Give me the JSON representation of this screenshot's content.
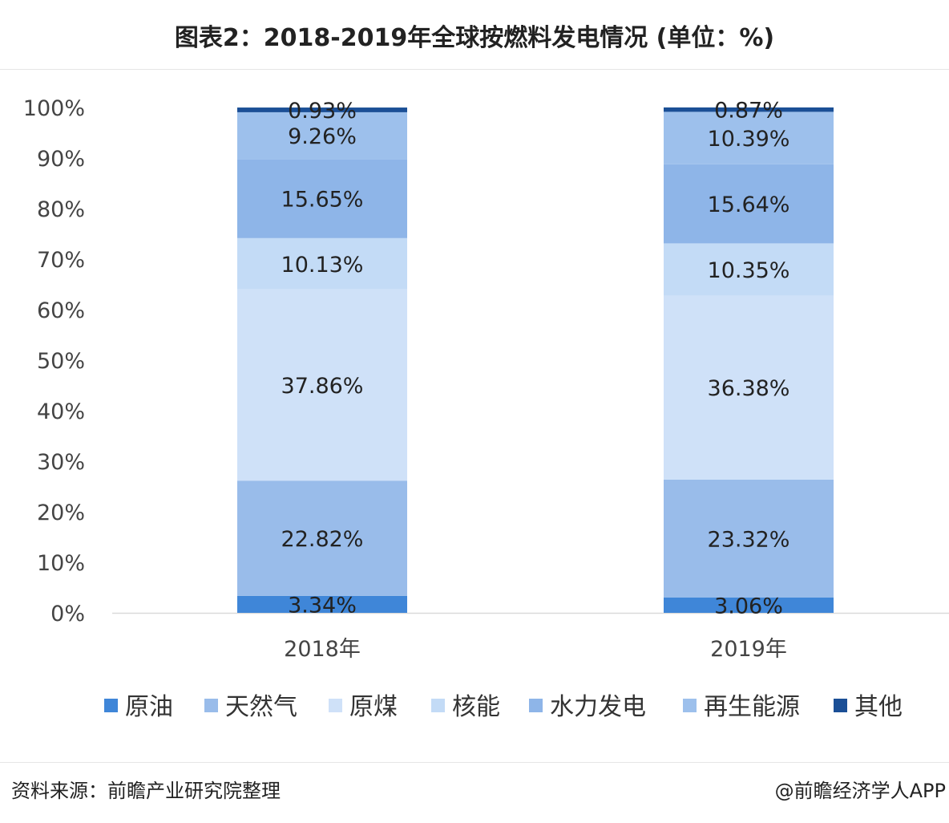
{
  "title": "图表2：2018-2019年全球按燃料发电情况 (单位：%)",
  "footer": {
    "source": "资料来源：前瞻产业研究院整理",
    "credit": "@前瞻经济学人APP"
  },
  "chart_data": {
    "type": "bar",
    "stacked": true,
    "categories": [
      "2018年",
      "2019年"
    ],
    "series": [
      {
        "name": "原油",
        "values": [
          3.34,
          3.06
        ],
        "color": "#3f86d8"
      },
      {
        "name": "天然气",
        "values": [
          22.82,
          23.32
        ],
        "color": "#99bcea"
      },
      {
        "name": "原煤",
        "values": [
          37.86,
          36.38
        ],
        "color": "#cfe1f8"
      },
      {
        "name": "核能",
        "values": [
          10.13,
          10.35
        ],
        "color": "#c3dbf6"
      },
      {
        "name": "水力发电",
        "values": [
          15.65,
          15.64
        ],
        "color": "#8eb5e8"
      },
      {
        "name": "再生能源",
        "values": [
          9.26,
          10.39
        ],
        "color": "#9dc0ec"
      },
      {
        "name": "其他",
        "values": [
          0.93,
          0.87
        ],
        "color": "#1b4f96"
      }
    ],
    "data_labels": [
      [
        "3.34%",
        "22.82%",
        "37.86%",
        "10.13%",
        "15.65%",
        "9.26%",
        "0.93%"
      ],
      [
        "3.06%",
        "23.32%",
        "36.38%",
        "10.35%",
        "15.64%",
        "10.39%",
        "0.87%"
      ]
    ],
    "ylim": [
      0,
      100
    ],
    "yticks": [
      "0%",
      "10%",
      "20%",
      "30%",
      "40%",
      "50%",
      "60%",
      "70%",
      "80%",
      "90%",
      "100%"
    ],
    "xlabel": "",
    "ylabel": "",
    "grid": false,
    "legend": "bottom"
  }
}
